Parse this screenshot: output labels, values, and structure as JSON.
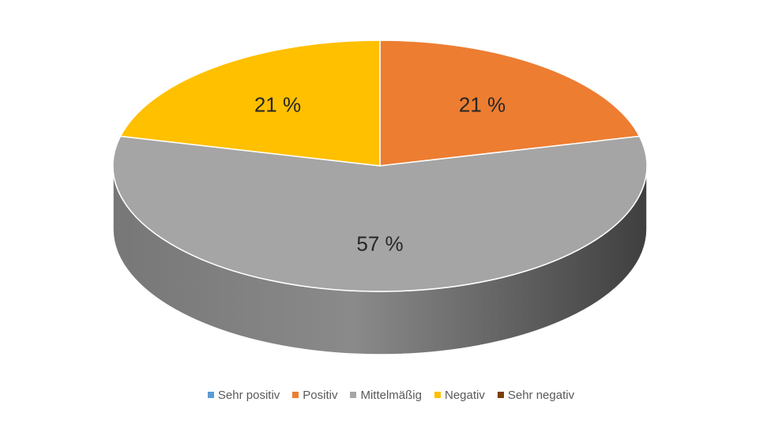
{
  "chart_data": {
    "type": "pie",
    "style": "3d",
    "unit": "%",
    "slices": [
      {
        "label": "Sehr positiv",
        "value": 0,
        "color": "#5B9BD5",
        "data_label": ""
      },
      {
        "label": "Positiv",
        "value": 21,
        "color": "#ED7D31",
        "data_label": "21 %"
      },
      {
        "label": "Mittelmäßig",
        "value": 57,
        "color": "#A5A5A5",
        "data_label": "57 %"
      },
      {
        "label": "Negativ",
        "value": 21,
        "color": "#FFC000",
        "data_label": "21 %"
      },
      {
        "label": "Sehr negativ",
        "value": 0,
        "color": "#7B3F00",
        "data_label": ""
      }
    ],
    "legend_position": "bottom"
  }
}
